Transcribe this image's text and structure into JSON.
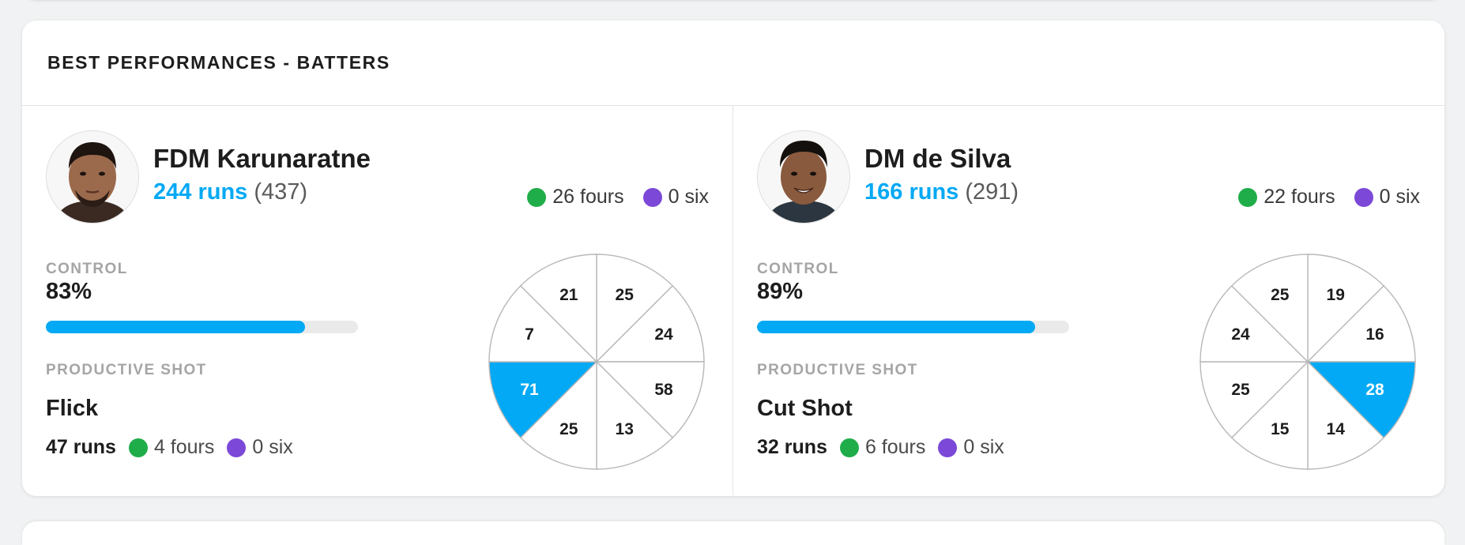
{
  "section": {
    "title": "BEST PERFORMANCES - BATTERS"
  },
  "colors": {
    "accent": "#03a9f4",
    "fours_dot": "#1fad4a",
    "six_dot": "#7b48d8"
  },
  "players": [
    {
      "name": "FDM Karunaratne",
      "runs": "244 runs",
      "balls": "(437)",
      "fours": "26 fours",
      "sixes": "0 six",
      "control_label": "CONTROL",
      "control": "83%",
      "control_fraction": 0.83,
      "productive_label": "PRODUCTIVE SHOT",
      "productive_shot": "Flick",
      "shot_runs": "47 runs",
      "shot_fours": "4 fours",
      "shot_sixes": "0 six",
      "wagon_wheel": [
        {
          "value": "25",
          "highlight": false
        },
        {
          "value": "24",
          "highlight": false
        },
        {
          "value": "58",
          "highlight": false
        },
        {
          "value": "13",
          "highlight": false
        },
        {
          "value": "25",
          "highlight": false
        },
        {
          "value": "71",
          "highlight": true
        },
        {
          "value": "7",
          "highlight": false
        },
        {
          "value": "21",
          "highlight": false
        }
      ]
    },
    {
      "name": "DM de Silva",
      "runs": "166 runs",
      "balls": "(291)",
      "fours": "22 fours",
      "sixes": "0 six",
      "control_label": "CONTROL",
      "control": "89%",
      "control_fraction": 0.89,
      "productive_label": "PRODUCTIVE SHOT",
      "productive_shot": "Cut Shot",
      "shot_runs": "32 runs",
      "shot_fours": "6 fours",
      "shot_sixes": "0 six",
      "wagon_wheel": [
        {
          "value": "19",
          "highlight": false
        },
        {
          "value": "16",
          "highlight": false
        },
        {
          "value": "28",
          "highlight": true
        },
        {
          "value": "14",
          "highlight": false
        },
        {
          "value": "15",
          "highlight": false
        },
        {
          "value": "25",
          "highlight": false
        },
        {
          "value": "24",
          "highlight": false
        },
        {
          "value": "25",
          "highlight": false
        }
      ]
    }
  ]
}
